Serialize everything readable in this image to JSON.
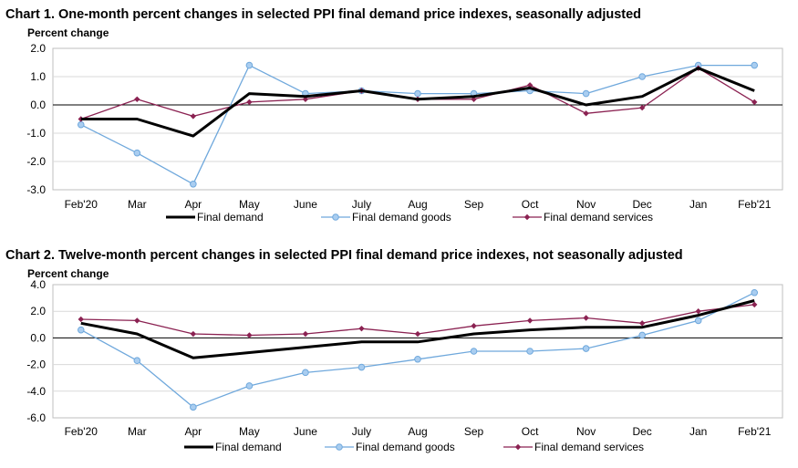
{
  "colors": {
    "final_demand": "#000000",
    "goods": "#6fa8dc",
    "goods_marker_fill": "#a9cdf0",
    "services": "#8b2252",
    "grid": "#d9d9d9",
    "frame": "#bfbfbf"
  },
  "chart_data": [
    {
      "type": "line",
      "title": "Chart 1. One-month percent changes in selected PPI final demand price indexes, seasonally adjusted",
      "ylabel": "Percent change",
      "xlabel": "",
      "categories": [
        "Feb'20",
        "Mar",
        "Apr",
        "May",
        "June",
        "July",
        "Aug",
        "Sep",
        "Oct",
        "Nov",
        "Dec",
        "Jan",
        "Feb'21"
      ],
      "ylim": [
        -3.0,
        2.0
      ],
      "yticks": [
        2.0,
        1.0,
        0.0,
        -1.0,
        -2.0,
        -3.0
      ],
      "ytick_labels": [
        "2.0",
        "1.0",
        "0.0",
        "-1.0",
        "-2.0",
        "-3.0"
      ],
      "grid": true,
      "legend": "bottom",
      "series": [
        {
          "name": "Final demand",
          "key": "final_demand",
          "values": [
            -0.5,
            -0.5,
            -1.1,
            0.4,
            0.3,
            0.5,
            0.2,
            0.3,
            0.6,
            0.0,
            0.3,
            1.3,
            0.5
          ]
        },
        {
          "name": "Final demand goods",
          "key": "goods",
          "values": [
            -0.7,
            -1.7,
            -2.8,
            1.4,
            0.4,
            0.5,
            0.4,
            0.4,
            0.5,
            0.4,
            1.0,
            1.4,
            1.4
          ]
        },
        {
          "name": "Final demand services",
          "key": "services",
          "values": [
            -0.5,
            0.2,
            -0.4,
            0.1,
            0.2,
            0.5,
            0.2,
            0.2,
            0.7,
            -0.3,
            -0.1,
            1.3,
            0.1
          ]
        }
      ]
    },
    {
      "type": "line",
      "title": "Chart 2. Twelve-month percent changes in selected PPI final demand price indexes, not seasonally adjusted",
      "ylabel": "Percent change",
      "xlabel": "",
      "categories": [
        "Feb'20",
        "Mar",
        "Apr",
        "May",
        "June",
        "July",
        "Aug",
        "Sep",
        "Oct",
        "Nov",
        "Dec",
        "Jan",
        "Feb'21"
      ],
      "ylim": [
        -6.0,
        4.0
      ],
      "yticks": [
        4.0,
        2.0,
        0.0,
        -2.0,
        -4.0,
        -6.0
      ],
      "ytick_labels": [
        "4.0",
        "2.0",
        "0.0",
        "-2.0",
        "-4.0",
        "-6.0"
      ],
      "grid": true,
      "legend": "bottom",
      "series": [
        {
          "name": "Final demand",
          "key": "final_demand",
          "values": [
            1.1,
            0.3,
            -1.5,
            -1.1,
            -0.7,
            -0.3,
            -0.3,
            0.3,
            0.6,
            0.8,
            0.8,
            1.7,
            2.8
          ]
        },
        {
          "name": "Final demand goods",
          "key": "goods",
          "values": [
            0.6,
            -1.7,
            -5.2,
            -3.6,
            -2.6,
            -2.2,
            -1.6,
            -1.0,
            -1.0,
            -0.8,
            0.2,
            1.3,
            3.4
          ]
        },
        {
          "name": "Final demand services",
          "key": "services",
          "values": [
            1.4,
            1.3,
            0.3,
            0.2,
            0.3,
            0.7,
            0.3,
            0.9,
            1.3,
            1.5,
            1.1,
            2.0,
            2.5
          ]
        }
      ]
    }
  ]
}
